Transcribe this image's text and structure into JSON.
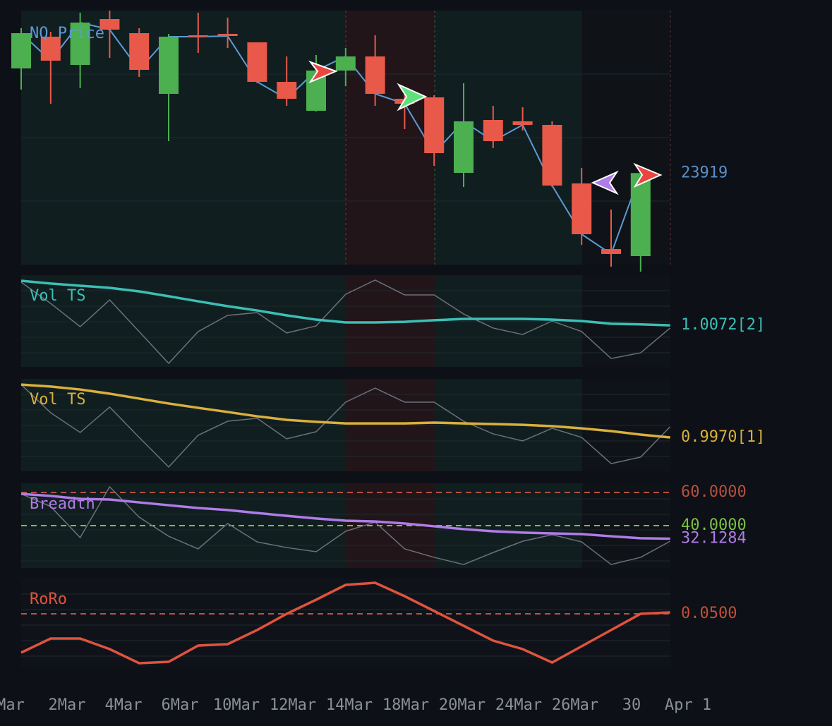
{
  "chart_data": [
    {
      "type": "candlestick",
      "title": "NQ Price",
      "open": [
        24512,
        24692,
        24532,
        24792,
        24712,
        24368,
        24700,
        24708,
        24660,
        24436,
        24272,
        24500,
        24580,
        24340,
        24348,
        23920,
        24220,
        24212,
        24192,
        23860,
        23488,
        23448
      ],
      "high": [
        24740,
        24720,
        24828,
        24840,
        24740,
        24708,
        24828,
        24800,
        24660,
        24580,
        24588,
        24628,
        24700,
        24380,
        24360,
        24428,
        24300,
        24292,
        24212,
        23948,
        23712,
        23919
      ],
      "low": [
        24392,
        24312,
        24400,
        24572,
        24464,
        24100,
        24600,
        24628,
        24428,
        24300,
        24268,
        24412,
        24300,
        24168,
        23960,
        23840,
        24060,
        24160,
        23840,
        23512,
        23388,
        23360
      ],
      "close": [
        24712,
        24556,
        24772,
        24732,
        24504,
        24692,
        24692,
        24696,
        24436,
        24340,
        24500,
        24580,
        24368,
        24312,
        24032,
        24212,
        24100,
        24192,
        23848,
        23572,
        23460,
        23919
      ],
      "up_color": "#4caf50",
      "down_color": "#e8594a",
      "line_color": "#5b9bd5",
      "label_color": "#5b8fc7",
      "ylim": [
        23360,
        24840
      ]
    },
    {
      "type": "line",
      "title": "Vol TS",
      "title_color": "#3bbfb5",
      "last_label": "1.0072[2]",
      "series": [
        {
          "color": "#6b7079",
          "values": [
            1.0354,
            1.0215,
            1.0063,
            1.0238,
            1.0031,
            0.9823,
            1.0031,
            1.0137,
            1.0155,
            1.0022,
            1.0068,
            1.0275,
            1.0368,
            1.0271,
            1.0271,
            1.0146,
            1.0054,
            1.0012,
            1.01,
            1.0031,
            0.9855,
            0.9892,
            1.0054
          ]
        },
        {
          "color": "#3bbfb5",
          "values": [
            1.0363,
            1.0345,
            1.0331,
            1.0317,
            1.0294,
            1.0262,
            1.0229,
            1.0197,
            1.0169,
            1.0137,
            1.0109,
            1.0091,
            1.0091,
            1.0095,
            1.0105,
            1.0114,
            1.0114,
            1.0114,
            1.0109,
            1.01,
            1.0082,
            1.0078,
            1.0072
          ]
        }
      ],
      "ylim": [
        0.98,
        1.04
      ]
    },
    {
      "type": "line",
      "title": "Vol TS",
      "title_color": "#d9b03c",
      "last_label": "0.9970[1]",
      "series": [
        {
          "color": "#6b7079",
          "values": [
            1.0313,
            1.013,
            1.0002,
            1.0167,
            0.997,
            0.9778,
            0.9984,
            1.0075,
            1.0094,
            0.9961,
            1.0007,
            1.0199,
            1.029,
            1.0199,
            1.0199,
            1.0075,
            0.9993,
            0.9947,
            1.0029,
            0.997,
            0.98,
            0.9842,
            1.0039
          ]
        },
        {
          "color": "#d9b03c",
          "values": [
            1.0313,
            1.03,
            1.0281,
            1.0254,
            1.0222,
            1.019,
            1.0162,
            1.0135,
            1.0107,
            1.0084,
            1.0071,
            1.0061,
            1.0061,
            1.0061,
            1.0066,
            1.0061,
            1.0057,
            1.0052,
            1.0043,
            1.0029,
            1.0011,
            0.9988,
            0.997
          ]
        }
      ],
      "ylim": [
        0.975,
        1.035
      ]
    },
    {
      "type": "line",
      "title": "Breadth",
      "title_color": "#b07ce8",
      "last_label": "32.1284",
      "ref_lines": [
        {
          "value": 60,
          "label": "60.0000",
          "color": "#b5503f"
        },
        {
          "value": 40,
          "label": "40.0000",
          "color": "#7bc043"
        }
      ],
      "series": [
        {
          "color": "#6b7079",
          "values": [
            59.1,
            51.5,
            32.8,
            63.4,
            45.1,
            33.6,
            26.0,
            41.3,
            30.2,
            26.8,
            24.3,
            36.6,
            42.1,
            26.0,
            20.9,
            16.6,
            23.8,
            30.6,
            34.5,
            30.2,
            16.6,
            20.9,
            30.6
          ]
        },
        {
          "color": "#b07ce8",
          "values": [
            59.1,
            57.9,
            56.1,
            55.7,
            54.0,
            52.3,
            50.6,
            49.4,
            47.6,
            45.9,
            44.3,
            43.0,
            42.5,
            41.3,
            39.6,
            37.9,
            36.6,
            35.8,
            35.3,
            34.9,
            33.6,
            32.4,
            32.1284
          ]
        }
      ],
      "ylim": [
        14.5,
        65.5
      ]
    },
    {
      "type": "line",
      "title": "RoRo",
      "title_color": "#e0533f",
      "ref_lines": [
        {
          "value": 0.05,
          "label": "0.0500",
          "color": "#c0503c"
        }
      ],
      "series": [
        {
          "color": "#e0533f",
          "values": [
            -0.005,
            0.015,
            0.015,
            0,
            -0.02,
            -0.018,
            0.005,
            0.007,
            0.027,
            0.05,
            0.07,
            0.091,
            0.094,
            0.075,
            0.054,
            0.033,
            0.012,
            0,
            -0.019,
            0.004,
            0.027,
            0.05,
            0.052
          ]
        }
      ],
      "ylim": [
        -0.025,
        0.1
      ],
      "x_labels": [
        "Mar",
        "2Mar",
        "4Mar",
        "6Mar",
        "10Mar",
        "12Mar",
        "14Mar",
        "18Mar",
        "20Mar",
        "24Mar",
        "26Mar",
        "30",
        "Apr 1"
      ]
    }
  ]
}
